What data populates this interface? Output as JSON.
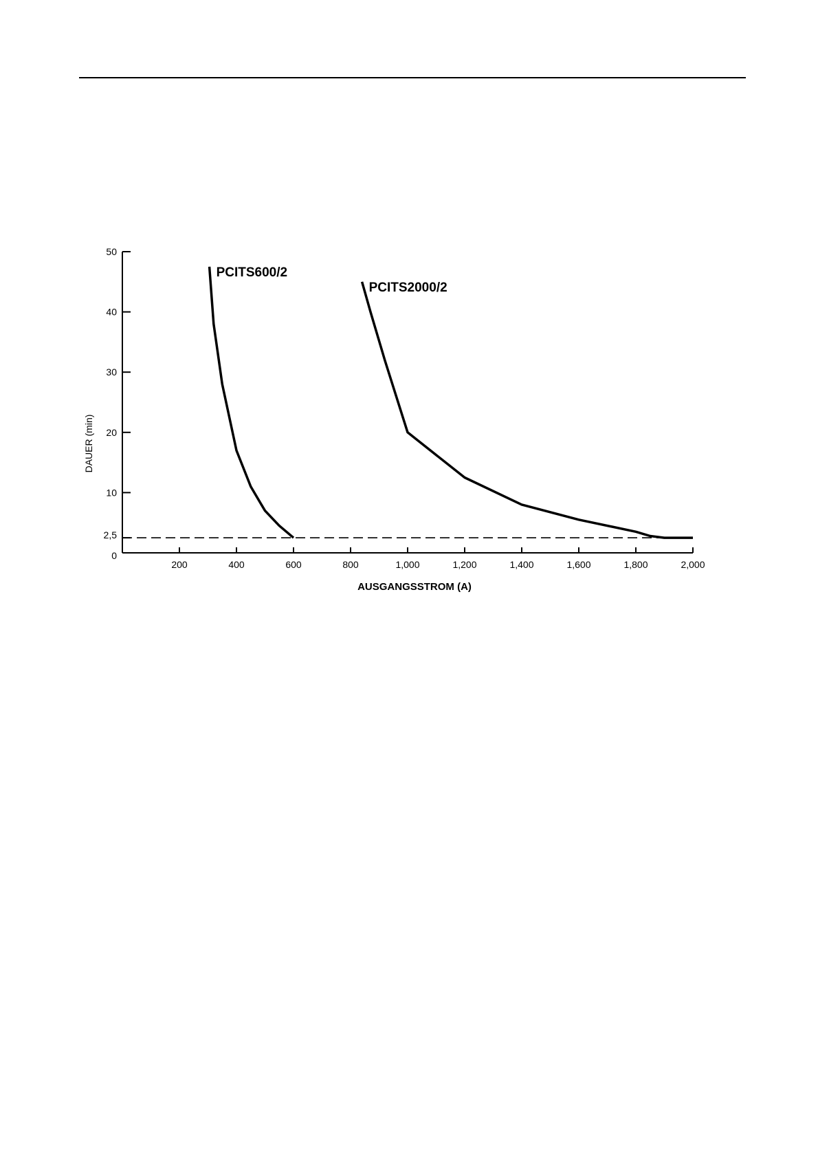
{
  "chart_data": {
    "type": "line",
    "xlabel": "AUSGANGSSTROM (A)",
    "ylabel": "DAUER (min)",
    "xlim": [
      0,
      2000
    ],
    "ylim": [
      0,
      50
    ],
    "x_ticks": [
      200,
      400,
      600,
      800,
      1000,
      1200,
      1400,
      1600,
      1800,
      2000
    ],
    "x_tick_labels": [
      "200",
      "400",
      "600",
      "800",
      "1,000",
      "1,200",
      "1,400",
      "1,600",
      "1,800",
      "2,000"
    ],
    "y_ticks": [
      0,
      2.5,
      10,
      20,
      30,
      40,
      50
    ],
    "y_tick_labels": [
      "0",
      "2,5",
      "10",
      "20",
      "30",
      "40",
      "50"
    ],
    "reference_line": {
      "y": 2.5,
      "style": "dashed"
    },
    "grid": false,
    "series": [
      {
        "name": "PCITS600/2",
        "points": [
          [
            305,
            47.5
          ],
          [
            320,
            38
          ],
          [
            350,
            28
          ],
          [
            400,
            17
          ],
          [
            450,
            11
          ],
          [
            500,
            7
          ],
          [
            550,
            4.5
          ],
          [
            600,
            2.5
          ]
        ]
      },
      {
        "name": "PCITS2000/2",
        "points": [
          [
            840,
            45
          ],
          [
            870,
            40
          ],
          [
            920,
            32
          ],
          [
            1000,
            20
          ],
          [
            1200,
            12.5
          ],
          [
            1400,
            8
          ],
          [
            1600,
            5.5
          ],
          [
            1800,
            3.5
          ],
          [
            1850,
            2.8
          ],
          [
            1900,
            2.5
          ],
          [
            2000,
            2.5
          ]
        ]
      }
    ]
  }
}
